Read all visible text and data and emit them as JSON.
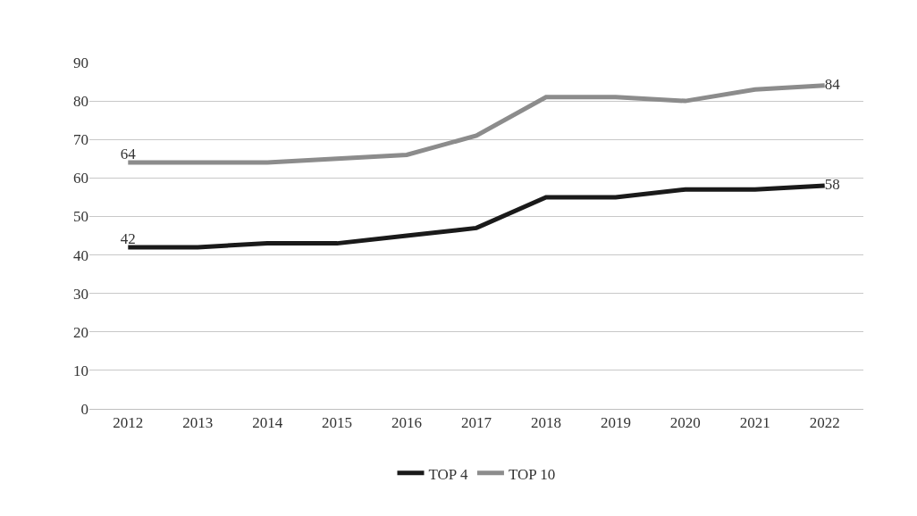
{
  "chart_data": {
    "type": "line",
    "categories": [
      "2012",
      "2013",
      "2014",
      "2015",
      "2016",
      "2017",
      "2018",
      "2019",
      "2020",
      "2021",
      "2022"
    ],
    "series": [
      {
        "name": "TOP 4",
        "color": "#1a1a1a",
        "values": [
          42,
          42,
          43,
          43,
          45,
          47,
          55,
          55,
          57,
          57,
          58
        ],
        "value_labels": [
          "42",
          null,
          null,
          null,
          null,
          null,
          null,
          null,
          null,
          null,
          "58"
        ]
      },
      {
        "name": "TOP 10",
        "color": "#8c8c8c",
        "values": [
          64,
          64,
          64,
          65,
          66,
          71,
          81,
          81,
          80,
          83,
          84
        ],
        "value_labels": [
          "64",
          null,
          null,
          null,
          null,
          null,
          null,
          null,
          null,
          null,
          "84"
        ]
      }
    ],
    "ylim": [
      0,
      90
    ],
    "yticks": [
      0,
      10,
      20,
      30,
      40,
      50,
      60,
      70,
      80,
      90
    ],
    "grid": "y",
    "legend": "bottom",
    "marker": "none",
    "line_style": "solid"
  }
}
